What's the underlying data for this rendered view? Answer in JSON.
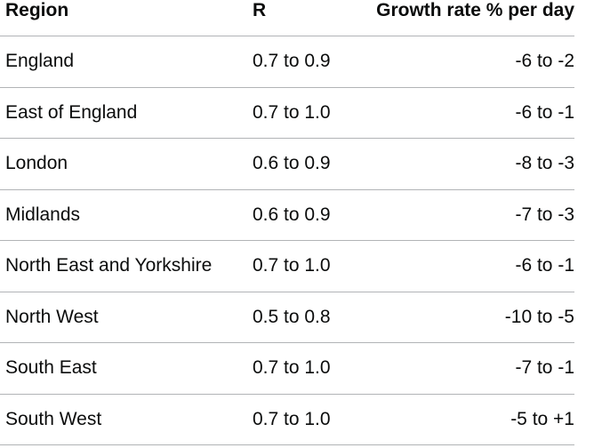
{
  "table": {
    "header": [
      "Region",
      "R",
      "Growth rate % per day"
    ],
    "rows": [
      [
        "England",
        "0.7 to 0.9",
        "-6 to -2"
      ],
      [
        "East of England",
        "0.7 to 1.0",
        "-6 to -1"
      ],
      [
        "London",
        "0.6 to 0.9",
        "-8 to -3"
      ],
      [
        "Midlands",
        "0.6 to 0.9",
        "-7 to -3"
      ],
      [
        "North East and Yorkshire",
        "0.7 to 1.0",
        "-6 to -1"
      ],
      [
        "North West",
        "0.5 to 0.8",
        "-10 to -5"
      ],
      [
        "South East",
        "0.7 to 1.0",
        "-7 to -1"
      ],
      [
        "South West",
        "0.7 to 1.0",
        "-5 to +1"
      ]
    ]
  }
}
